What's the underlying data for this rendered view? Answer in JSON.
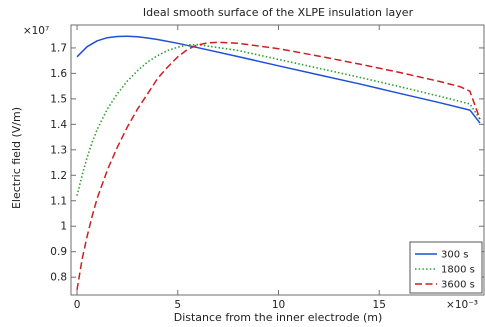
{
  "chart_data": {
    "type": "line",
    "title": "Ideal smooth surface of the XLPE insulation layer",
    "xlabel": "Distance from the inner electrode (m)",
    "ylabel": "Electric field (V/m)",
    "x_multiplier": "×10⁻³",
    "y_multiplier": "×10⁷",
    "xlim": [
      -0.3,
      20.2
    ],
    "ylim": [
      0.73,
      1.79
    ],
    "x_ticks": [
      0,
      5,
      10,
      15
    ],
    "x_tick_labels": [
      "0",
      "5",
      "10",
      "15"
    ],
    "y_ticks": [
      0.8,
      0.9,
      1.0,
      1.1,
      1.2,
      1.3,
      1.4,
      1.5,
      1.6,
      1.7
    ],
    "y_tick_labels": [
      "0.8",
      "0.9",
      "1",
      "1.1",
      "1.2",
      "1.3",
      "1.4",
      "1.5",
      "1.6",
      "1.7"
    ],
    "grid": false,
    "legend_position": "bottom-right",
    "series": [
      {
        "name": "300 s",
        "color": "#1f4fd8",
        "dash": "solid",
        "x": [
          0,
          0.5,
          1,
          1.5,
          2,
          2.5,
          3,
          3.5,
          4,
          5,
          6,
          8,
          10,
          12,
          14,
          16,
          18,
          19.5,
          20
        ],
        "y": [
          1.665,
          1.705,
          1.728,
          1.74,
          1.745,
          1.746,
          1.744,
          1.739,
          1.733,
          1.718,
          1.701,
          1.666,
          1.63,
          1.594,
          1.559,
          1.522,
          1.485,
          1.456,
          1.405
        ]
      },
      {
        "name": "1800 s",
        "color": "#2ca02c",
        "dash": "dotted",
        "x": [
          0,
          0.25,
          0.5,
          0.75,
          1,
          1.5,
          2,
          2.5,
          3,
          3.5,
          4,
          4.5,
          5,
          5.5,
          6,
          8,
          10,
          12,
          14,
          16,
          18,
          19.5,
          20
        ],
        "y": [
          1.12,
          1.2,
          1.27,
          1.33,
          1.38,
          1.46,
          1.52,
          1.57,
          1.61,
          1.645,
          1.67,
          1.69,
          1.703,
          1.712,
          1.713,
          1.69,
          1.655,
          1.62,
          1.585,
          1.548,
          1.51,
          1.48,
          1.42
        ]
      },
      {
        "name": "3600 s",
        "color": "#cc1f1f",
        "dash": "dashed",
        "x": [
          0,
          0.25,
          0.5,
          0.75,
          1,
          1.5,
          2,
          2.5,
          3,
          3.5,
          4,
          4.5,
          5,
          5.5,
          6,
          6.5,
          7,
          8,
          10,
          12,
          14,
          16,
          18,
          19,
          19.5,
          20
        ],
        "y": [
          0.75,
          0.87,
          0.96,
          1.04,
          1.11,
          1.22,
          1.31,
          1.39,
          1.46,
          1.52,
          1.58,
          1.625,
          1.665,
          1.695,
          1.712,
          1.72,
          1.722,
          1.718,
          1.697,
          1.668,
          1.637,
          1.604,
          1.568,
          1.548,
          1.53,
          1.42
        ]
      }
    ]
  }
}
